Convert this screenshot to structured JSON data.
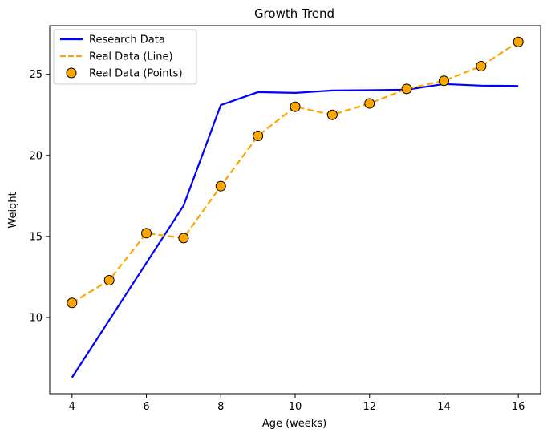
{
  "chart_data": {
    "type": "line",
    "title": "Growth Trend",
    "xlabel": "Age (weeks)",
    "ylabel": "Weight",
    "xlim": [
      3.4,
      16.6
    ],
    "ylim": [
      5.3,
      28.0
    ],
    "xticks": [
      4,
      6,
      8,
      10,
      12,
      14,
      16
    ],
    "yticks": [
      10,
      15,
      20,
      25
    ],
    "grid": false,
    "legend_position": "top-left",
    "series": [
      {
        "name": "Research Data",
        "style": "solid-line",
        "color": "#0000ff",
        "x": [
          4,
          7,
          8,
          9,
          10,
          11,
          12,
          13,
          14,
          15,
          16
        ],
        "values": [
          6.3,
          16.9,
          23.1,
          23.9,
          23.85,
          24.0,
          24.02,
          24.05,
          24.4,
          24.3,
          24.28
        ]
      },
      {
        "name": "Real Data (Line)",
        "style": "dashed-line",
        "color": "#ffa500",
        "x": [
          4,
          5,
          6,
          7,
          8,
          9,
          10,
          11,
          12,
          13,
          14,
          15,
          16
        ],
        "values": [
          10.9,
          12.3,
          15.2,
          14.9,
          18.1,
          21.2,
          23.0,
          22.5,
          23.2,
          24.1,
          24.6,
          25.5,
          27.0
        ]
      },
      {
        "name": "Real Data (Points)",
        "style": "markers",
        "color": "#ffa500",
        "edge_color": "#000000",
        "x": [
          4,
          5,
          6,
          7,
          8,
          9,
          10,
          11,
          12,
          13,
          14,
          15,
          16
        ],
        "values": [
          10.9,
          12.3,
          15.2,
          14.9,
          18.1,
          21.2,
          23.0,
          22.5,
          23.2,
          24.1,
          24.6,
          25.5,
          27.0
        ]
      }
    ]
  }
}
